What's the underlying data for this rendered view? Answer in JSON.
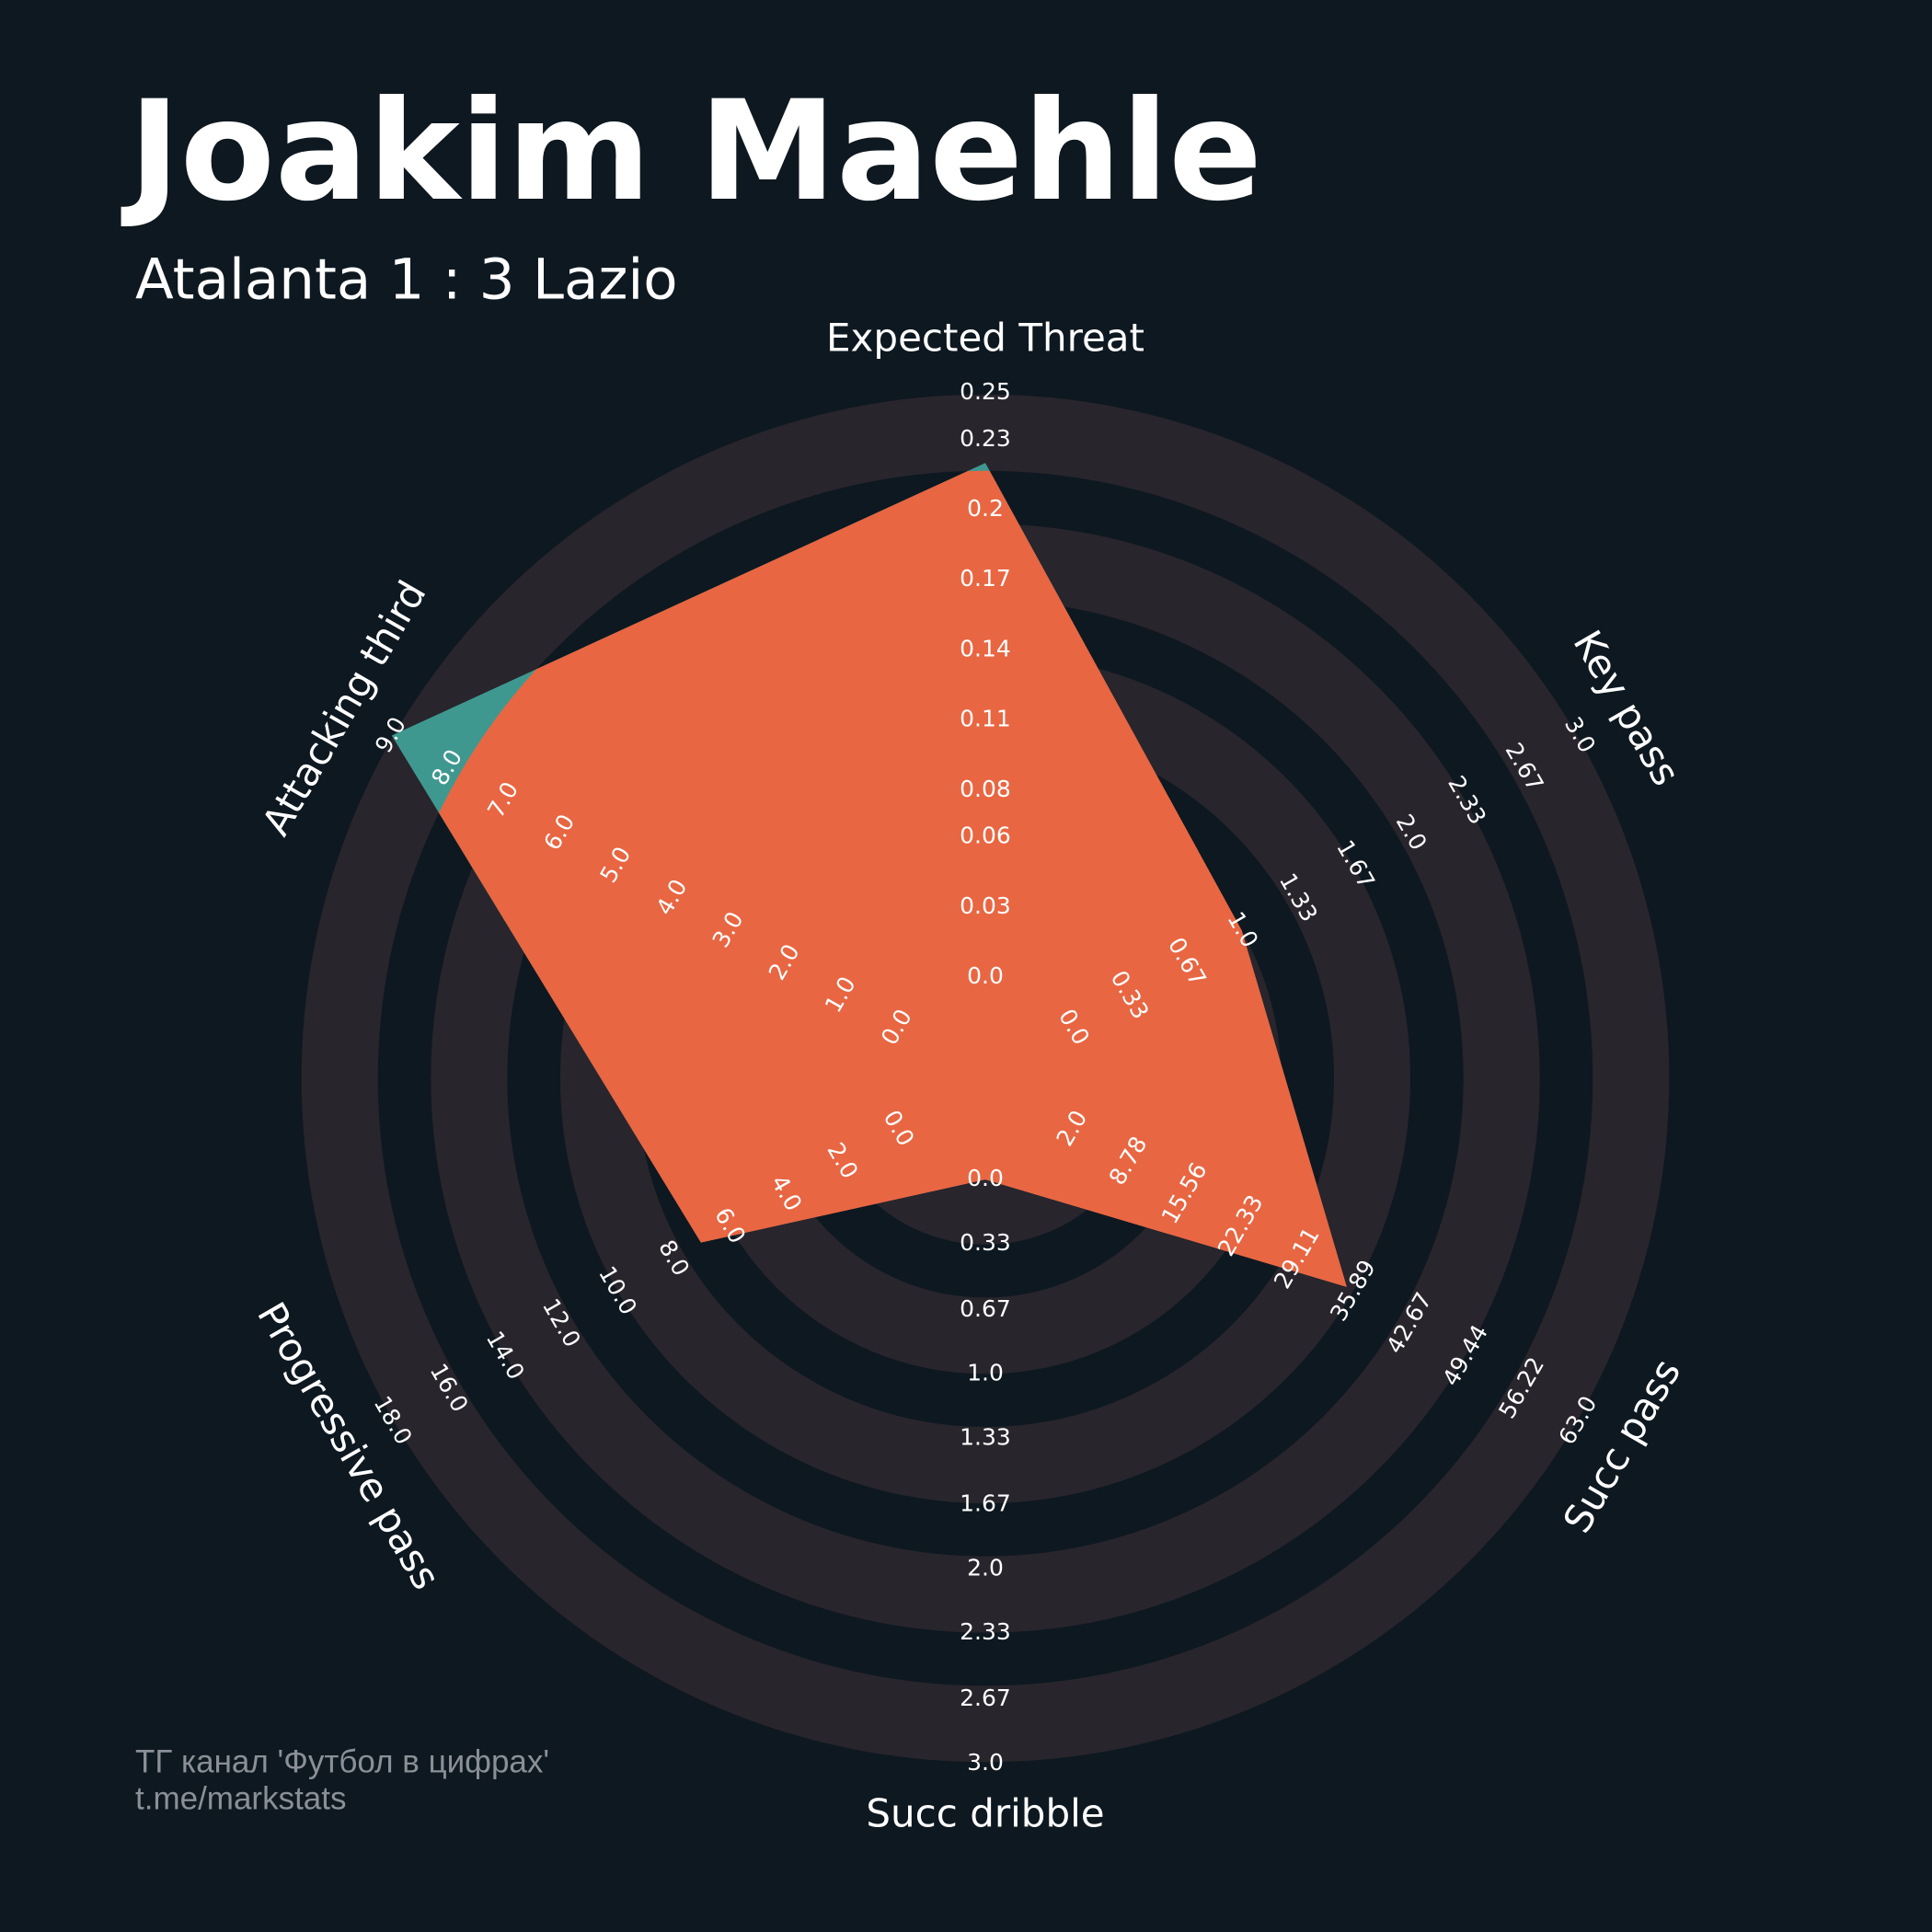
{
  "chart_data": {
    "type": "radar",
    "title": "Joakim Maehle",
    "subtitle": "Atalanta 1 : 3 Lazio",
    "footer": [
      "ТГ канал 'Футбол в цифрах'",
      "t.me/markstats"
    ],
    "categories": [
      "Expected Threat",
      "Key pass",
      "Succ pass",
      "Succ dribble",
      "Progressive pass",
      "Attacking third"
    ],
    "axes": [
      {
        "lim": [
          0,
          0.25
        ],
        "ticks": [
          {
            "value": 0,
            "label": "0.0"
          },
          0.03,
          0.06,
          0.08,
          0.11,
          0.14,
          0.17,
          0.2,
          0.23,
          0.25
        ]
      },
      {
        "lim": [
          0,
          3
        ],
        "ticks": [
          {
            "value": 0,
            "label": "0.0"
          },
          0.33,
          0.67,
          {
            "value": 1,
            "label": "1.0"
          },
          1.33,
          1.67,
          {
            "value": 2,
            "label": "2.0"
          },
          2.33,
          2.67,
          {
            "value": 3,
            "label": "3.0"
          }
        ]
      },
      {
        "lim": [
          2,
          63
        ],
        "ticks": [
          {
            "value": 2,
            "label": "2.0"
          },
          8.78,
          15.56,
          22.33,
          29.11,
          35.89,
          42.67,
          49.44,
          56.22,
          {
            "value": 63,
            "label": "63.0"
          }
        ]
      },
      {
        "lim": [
          0,
          3
        ],
        "ticks": [
          {
            "value": 0,
            "label": "0.0"
          },
          0.33,
          0.67,
          {
            "value": 1,
            "label": "1.0"
          },
          1.33,
          1.67,
          {
            "value": 2,
            "label": "2.0"
          },
          2.33,
          2.67,
          {
            "value": 3,
            "label": "3.0"
          }
        ]
      },
      {
        "lim": [
          0,
          18
        ],
        "ticks": [
          {
            "value": 0,
            "label": "0.0"
          },
          {
            "value": 2,
            "label": "2.0"
          },
          {
            "value": 4,
            "label": "4.0"
          },
          {
            "value": 6,
            "label": "6.0"
          },
          {
            "value": 8,
            "label": "8.0"
          },
          {
            "value": 10,
            "label": "10.0"
          },
          {
            "value": 12,
            "label": "12.0"
          },
          {
            "value": 14,
            "label": "14.0"
          },
          {
            "value": 16,
            "label": "16.0"
          },
          {
            "value": 18,
            "label": "18.0"
          }
        ]
      },
      {
        "lim": [
          0,
          9
        ],
        "ticks": [
          {
            "value": 0,
            "label": "0.0"
          },
          {
            "value": 1,
            "label": "1.0"
          },
          {
            "value": 2,
            "label": "2.0"
          },
          {
            "value": 3,
            "label": "3.0"
          },
          {
            "value": 4,
            "label": "4.0"
          },
          {
            "value": 5,
            "label": "5.0"
          },
          {
            "value": 6,
            "label": "6.0"
          },
          {
            "value": 7,
            "label": "7.0"
          },
          {
            "value": 8,
            "label": "8.0"
          },
          {
            "value": 9,
            "label": "9.0"
          }
        ]
      }
    ],
    "series": [
      {
        "values": [
          0.22,
          1,
          35,
          0,
          7,
          9
        ],
        "color": "#3f9890",
        "alt_color": "#e86642"
      }
    ],
    "ring_colors": [
      "#28252c",
      "#0e1820"
    ]
  }
}
